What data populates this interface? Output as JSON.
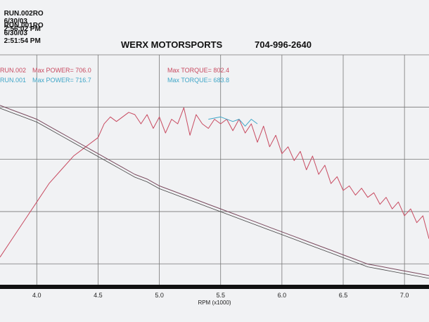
{
  "header": {
    "run_lines": [
      {
        "label": "RUN.002RO",
        "date": "6/30/03",
        "time": "2:56:02 PM"
      },
      {
        "label": "RUN.001RO",
        "date": "6/30/03",
        "time": "2:51:54 PM"
      }
    ],
    "company": "WERX MOTORSPORTS",
    "phone": "704-996-2640"
  },
  "chart_data": {
    "type": "line",
    "xlabel": "RPM (x1000)",
    "xlim": [
      3.7,
      7.2
    ],
    "x_ticks": [
      "4.0",
      "4.5",
      "5.0",
      "5.5",
      "6.0",
      "6.5",
      "7.0"
    ],
    "ylim": [
      0,
      1
    ],
    "grid": true,
    "legend": [
      {
        "run": "RUN.002",
        "power_label": "Max POWER=",
        "power_value": "706.0",
        "torque_label": "Max TORQUE=",
        "torque_value": "802.4",
        "color": "#c84a60"
      },
      {
        "run": "RUN.001",
        "power_label": "Max POWER=",
        "power_value": "716.7",
        "torque_label": "Max TORQUE=",
        "torque_value": "683.8",
        "color": "#3fa6c8"
      }
    ],
    "series": [
      {
        "name": "RUN.002",
        "color": "#c84a60",
        "style": "rising-power",
        "x": [
          3.7,
          3.8,
          3.9,
          4.0,
          4.1,
          4.2,
          4.3,
          4.4,
          4.5,
          4.55,
          4.6,
          4.65,
          4.7,
          4.75,
          4.8,
          4.85,
          4.9,
          4.95,
          5.0,
          5.05,
          5.1,
          5.15,
          5.2,
          5.25,
          5.3,
          5.35,
          5.4,
          5.45,
          5.5,
          5.55,
          5.6,
          5.65,
          5.7,
          5.75,
          5.8,
          5.85,
          5.9,
          5.95,
          6.0,
          6.05,
          6.1,
          6.15,
          6.2,
          6.25,
          6.3,
          6.35,
          6.4,
          6.45,
          6.5,
          6.55,
          6.6,
          6.65,
          6.7,
          6.75,
          6.8,
          6.85,
          6.9,
          6.95,
          7.0,
          7.05,
          7.1,
          7.15,
          7.2
        ],
        "y": [
          0.12,
          0.2,
          0.28,
          0.36,
          0.44,
          0.5,
          0.56,
          0.6,
          0.64,
          0.7,
          0.73,
          0.71,
          0.73,
          0.75,
          0.74,
          0.7,
          0.74,
          0.68,
          0.73,
          0.66,
          0.72,
          0.7,
          0.77,
          0.65,
          0.74,
          0.7,
          0.68,
          0.72,
          0.7,
          0.72,
          0.67,
          0.72,
          0.66,
          0.7,
          0.62,
          0.69,
          0.6,
          0.65,
          0.57,
          0.6,
          0.54,
          0.58,
          0.5,
          0.56,
          0.48,
          0.52,
          0.44,
          0.47,
          0.41,
          0.43,
          0.39,
          0.42,
          0.38,
          0.4,
          0.35,
          0.38,
          0.33,
          0.36,
          0.3,
          0.33,
          0.27,
          0.3,
          0.2
        ]
      },
      {
        "name": "RUN.001",
        "color": "#3fa6c8",
        "style": "torque-tail",
        "x": [
          5.4,
          5.5,
          5.6,
          5.65,
          5.7,
          5.75,
          5.8
        ],
        "y": [
          0.72,
          0.73,
          0.71,
          0.72,
          0.69,
          0.72,
          0.7
        ]
      },
      {
        "name": "RUN.002 torque",
        "color": "#7a4a5e",
        "style": "falling",
        "x": [
          3.7,
          3.8,
          3.9,
          4.0,
          4.1,
          4.2,
          4.3,
          4.4,
          4.5,
          4.6,
          4.7,
          4.8,
          4.9,
          5.0,
          5.1,
          5.2,
          5.3,
          5.4,
          5.5,
          5.6,
          5.7,
          5.8,
          5.9,
          6.0,
          6.1,
          6.2,
          6.3,
          6.4,
          6.5,
          6.6,
          6.7,
          6.8,
          6.9,
          7.0,
          7.1,
          7.2
        ],
        "y": [
          0.78,
          0.76,
          0.74,
          0.72,
          0.69,
          0.66,
          0.63,
          0.6,
          0.57,
          0.54,
          0.51,
          0.48,
          0.46,
          0.43,
          0.41,
          0.39,
          0.37,
          0.35,
          0.33,
          0.31,
          0.29,
          0.27,
          0.25,
          0.23,
          0.21,
          0.19,
          0.17,
          0.15,
          0.13,
          0.11,
          0.09,
          0.08,
          0.07,
          0.06,
          0.05,
          0.04
        ]
      }
    ]
  }
}
